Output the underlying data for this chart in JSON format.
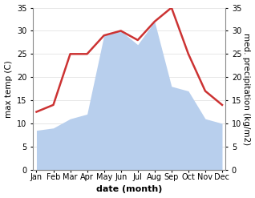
{
  "months": [
    "Jan",
    "Feb",
    "Mar",
    "Apr",
    "May",
    "Jun",
    "Jul",
    "Aug",
    "Sep",
    "Oct",
    "Nov",
    "Dec"
  ],
  "month_indices": [
    0,
    1,
    2,
    3,
    4,
    5,
    6,
    7,
    8,
    9,
    10,
    11
  ],
  "temperature": [
    12.5,
    14.0,
    25.0,
    25.0,
    29.0,
    30.0,
    28.0,
    32.0,
    35.0,
    25.0,
    17.0,
    14.0
  ],
  "precipitation": [
    8.5,
    9.0,
    11.0,
    12.0,
    29.0,
    30.0,
    27.0,
    32.0,
    18.0,
    17.0,
    11.0,
    10.0
  ],
  "temp_color": "#cc3333",
  "precip_color": "#b8cfed",
  "ylabel_left": "max temp (C)",
  "ylabel_right": "med. precipitation (kg/m2)",
  "xlabel": "date (month)",
  "ylim": [
    0,
    35
  ],
  "yticks": [
    0,
    5,
    10,
    15,
    20,
    25,
    30,
    35
  ],
  "background_color": "#ffffff",
  "temp_linewidth": 1.8,
  "xlabel_fontsize": 8,
  "ylabel_fontsize": 7.5,
  "tick_fontsize": 7
}
